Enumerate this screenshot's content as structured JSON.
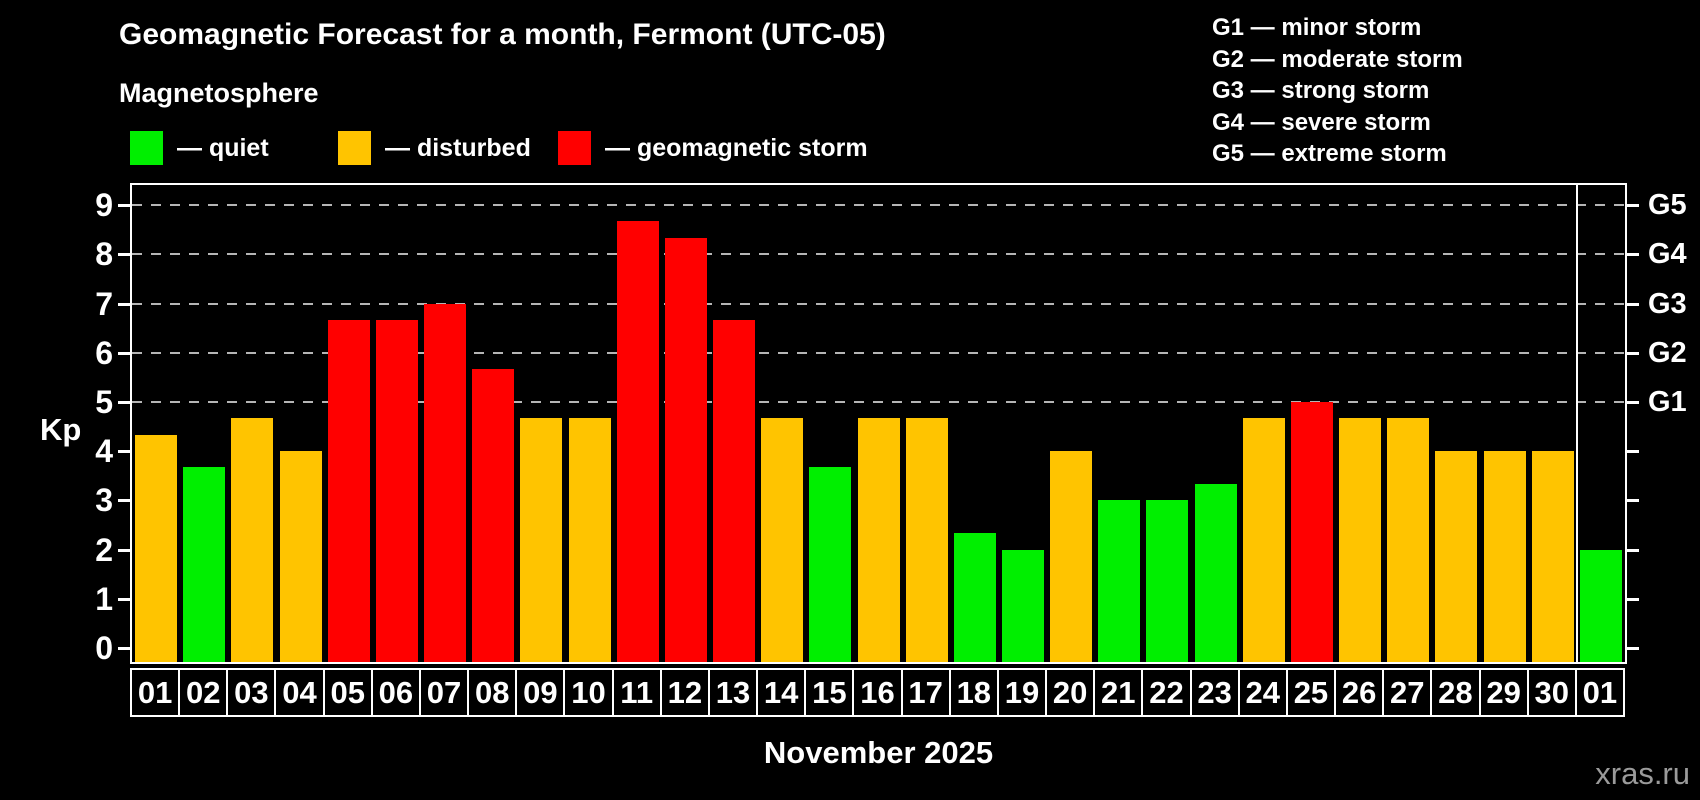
{
  "header": {
    "title": "Geomagnetic Forecast for a month, Fermont (UTC-05)",
    "subtitle": "Magnetosphere"
  },
  "legend": {
    "items": [
      {
        "key": "quiet",
        "label": "— quiet",
        "color": "#00ef00"
      },
      {
        "key": "disturbed",
        "label": "— disturbed",
        "color": "#ffc400"
      },
      {
        "key": "storm",
        "label": "— geomagnetic storm",
        "color": "#ff0000"
      }
    ]
  },
  "g_scale_legend": {
    "items": [
      "G1 — minor storm",
      "G2 — moderate storm",
      "G3 — strong storm",
      "G4 — severe storm",
      "G5 — extreme storm"
    ]
  },
  "footer": {
    "watermark": "xras.ru"
  },
  "chart_data": {
    "type": "bar",
    "title": "Geomagnetic Forecast for a month, Fermont (UTC-05)",
    "subtitle": "Magnetosphere",
    "xlabel": "November 2025",
    "ylabel": "Kp",
    "ylim": [
      0,
      9
    ],
    "yticks": [
      0,
      1,
      2,
      3,
      4,
      5,
      6,
      7,
      8,
      9
    ],
    "gridlines_at": [
      5,
      6,
      7,
      8,
      9
    ],
    "grid": "dashed, only at storm levels",
    "legend_position": "top-left",
    "right_axis_labels": [
      {
        "kp": 5,
        "label": "G1"
      },
      {
        "kp": 6,
        "label": "G2"
      },
      {
        "kp": 7,
        "label": "G3"
      },
      {
        "kp": 8,
        "label": "G4"
      },
      {
        "kp": 9,
        "label": "G5"
      }
    ],
    "colors": {
      "quiet": "#00ef00",
      "disturbed": "#ffc400",
      "storm": "#ff0000"
    },
    "background_color": "#000000",
    "text_color": "#ffffff",
    "categories": [
      "01",
      "02",
      "03",
      "04",
      "05",
      "06",
      "07",
      "08",
      "09",
      "10",
      "11",
      "12",
      "13",
      "14",
      "15",
      "16",
      "17",
      "18",
      "19",
      "20",
      "21",
      "22",
      "23",
      "24",
      "25",
      "26",
      "27",
      "28",
      "29",
      "30",
      "01"
    ],
    "values": [
      4.33,
      3.67,
      4.67,
      4.0,
      6.67,
      6.67,
      7.0,
      5.67,
      4.67,
      4.67,
      8.67,
      8.33,
      6.67,
      4.67,
      3.67,
      4.67,
      4.67,
      2.33,
      2.0,
      4.0,
      3.0,
      3.0,
      3.33,
      4.67,
      5.0,
      4.67,
      4.67,
      4.0,
      4.0,
      4.0,
      2.0
    ],
    "statuses": [
      "disturbed",
      "quiet",
      "disturbed",
      "disturbed",
      "storm",
      "storm",
      "storm",
      "storm",
      "disturbed",
      "disturbed",
      "storm",
      "storm",
      "storm",
      "disturbed",
      "quiet",
      "disturbed",
      "disturbed",
      "quiet",
      "quiet",
      "disturbed",
      "quiet",
      "quiet",
      "quiet",
      "disturbed",
      "storm",
      "disturbed",
      "disturbed",
      "disturbed",
      "disturbed",
      "disturbed",
      "quiet"
    ],
    "separator_before_index": 30
  }
}
